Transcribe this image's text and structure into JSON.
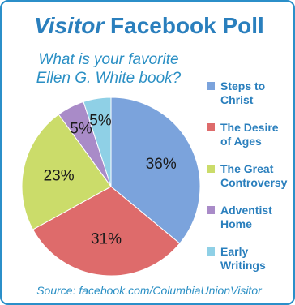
{
  "header": {
    "title_italic": "Visitor",
    "title_rest": "Facebook Poll",
    "question_line1": "What is your favorite",
    "question_line2": "Ellen G. White book?"
  },
  "source": "Source: facebook.com/ColumbiaUnionVisitor",
  "chart_data": {
    "type": "pie",
    "title": "Visitor Facebook Poll",
    "subtitle": "What is your favorite Ellen G. White book?",
    "categories": [
      "Steps to Christ",
      "The Desire of Ages",
      "The Great Controversy",
      "Adventist Home",
      "Early Writings"
    ],
    "legend_lines": [
      [
        "Steps to",
        "Christ"
      ],
      [
        "The Desire",
        "of Ages"
      ],
      [
        "The Great",
        "Controversy"
      ],
      [
        "Adventist",
        "Home"
      ],
      [
        "Early",
        "Writings"
      ]
    ],
    "values": [
      36,
      31,
      23,
      5,
      5
    ],
    "labels": [
      "36%",
      "31%",
      "23%",
      "5%",
      "5%"
    ],
    "colors": [
      "#7ba3dc",
      "#de6b6b",
      "#cbdc6a",
      "#a98bc8",
      "#8fd0e6"
    ],
    "legend": "right",
    "direction": "clockwise",
    "start": "top"
  }
}
